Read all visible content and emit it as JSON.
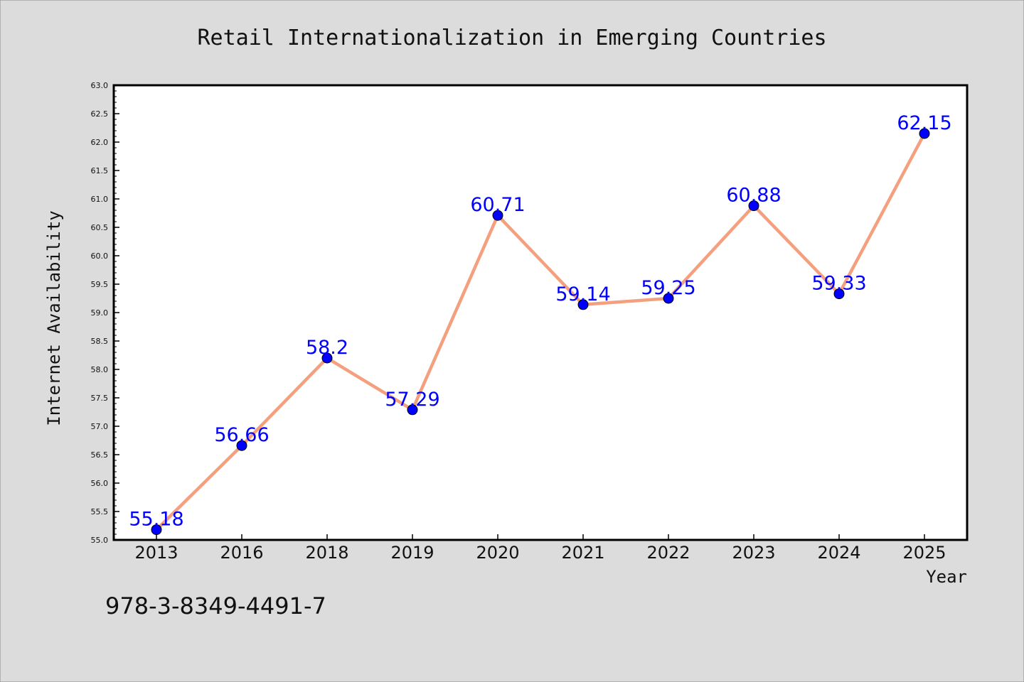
{
  "chart_data": {
    "type": "line",
    "title": "Retail Internationalization in Emerging Countries",
    "xlabel": "Year",
    "ylabel": "Internet Availability",
    "categories": [
      "2013",
      "2016",
      "2018",
      "2019",
      "2020",
      "2021",
      "2022",
      "2023",
      "2024",
      "2025"
    ],
    "series": [
      {
        "values": [
          55.18,
          56.66,
          58.2,
          57.29,
          60.71,
          59.14,
          59.25,
          60.88,
          59.33,
          62.15
        ],
        "labels": [
          "55.18",
          "56.66",
          "58.2",
          "57.29",
          "60.71",
          "59.14",
          "59.25",
          "60.88",
          "59.33",
          "62.15"
        ]
      }
    ],
    "ylim": [
      55.0,
      63.0
    ],
    "yticks": [
      "55.0",
      "55.5",
      "56.0",
      "56.5",
      "57.0",
      "57.5",
      "58.0",
      "58.5",
      "59.0",
      "59.5",
      "60.0",
      "60.5",
      "61.0",
      "61.5",
      "62.0",
      "62.5",
      "63.0"
    ],
    "grid": false,
    "legend": "none",
    "colors": {
      "background": "#dcdcdc",
      "plot_background": "#ffffff",
      "line": "#f4a07e",
      "marker": "#0000ff",
      "marker_edge": "#000000",
      "data_label": "#0000ff"
    }
  },
  "annotation": {
    "isbn": "978-3-8349-4491-7"
  }
}
